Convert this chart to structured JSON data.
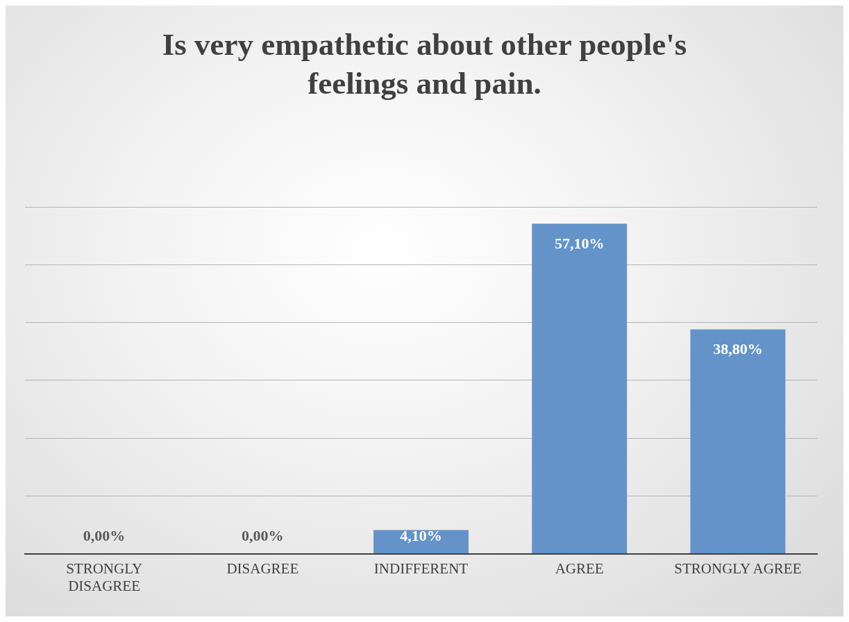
{
  "chart_data": {
    "type": "bar",
    "title": "Is very empathetic about other people's feelings and pain.",
    "categories": [
      "STRONGLY DISAGREE",
      "DISAGREE",
      "INDIFFERENT",
      "AGREE",
      "STRONGLY AGREE"
    ],
    "values": [
      0,
      0,
      4.1,
      57.1,
      38.8
    ],
    "value_labels": [
      "0,00%",
      "0,00%",
      "4,10%",
      "57,10%",
      "38,80%"
    ],
    "color": "#6393c9",
    "ylim": [
      0,
      60
    ],
    "yticks": [
      {
        "value": 0,
        "label": null
      },
      {
        "value": 10,
        "label": null
      },
      {
        "value": 20,
        "label": null
      },
      {
        "value": 30,
        "label": null
      },
      {
        "value": 40,
        "label": null
      },
      {
        "value": 50,
        "label": null
      },
      {
        "value": 60,
        "label": null
      }
    ],
    "tick_labels": "x",
    "grid": "y",
    "legend": false
  }
}
